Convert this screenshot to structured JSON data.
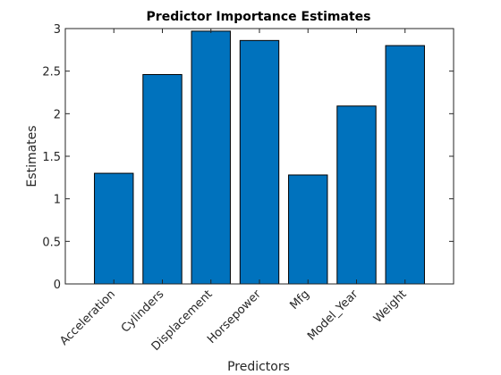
{
  "chart_data": {
    "type": "bar",
    "title": "Predictor Importance Estimates",
    "xlabel": "Predictors",
    "ylabel": "Estimates",
    "categories": [
      "Acceleration",
      "Cylinders",
      "Displacement",
      "Horsepower",
      "Mfg",
      "Model_Year",
      "Weight"
    ],
    "values": [
      1.3,
      2.46,
      2.97,
      2.86,
      1.28,
      2.09,
      2.8
    ],
    "ylim": [
      0,
      3
    ],
    "yticks": [
      0,
      0.5,
      1,
      1.5,
      2,
      2.5,
      3
    ],
    "ytick_labels": [
      "0",
      "0.5",
      "1",
      "1.5",
      "2",
      "2.5",
      "3"
    ],
    "grid": false,
    "bar_color": "#0072bd",
    "bar_edge_color": "#000000"
  }
}
